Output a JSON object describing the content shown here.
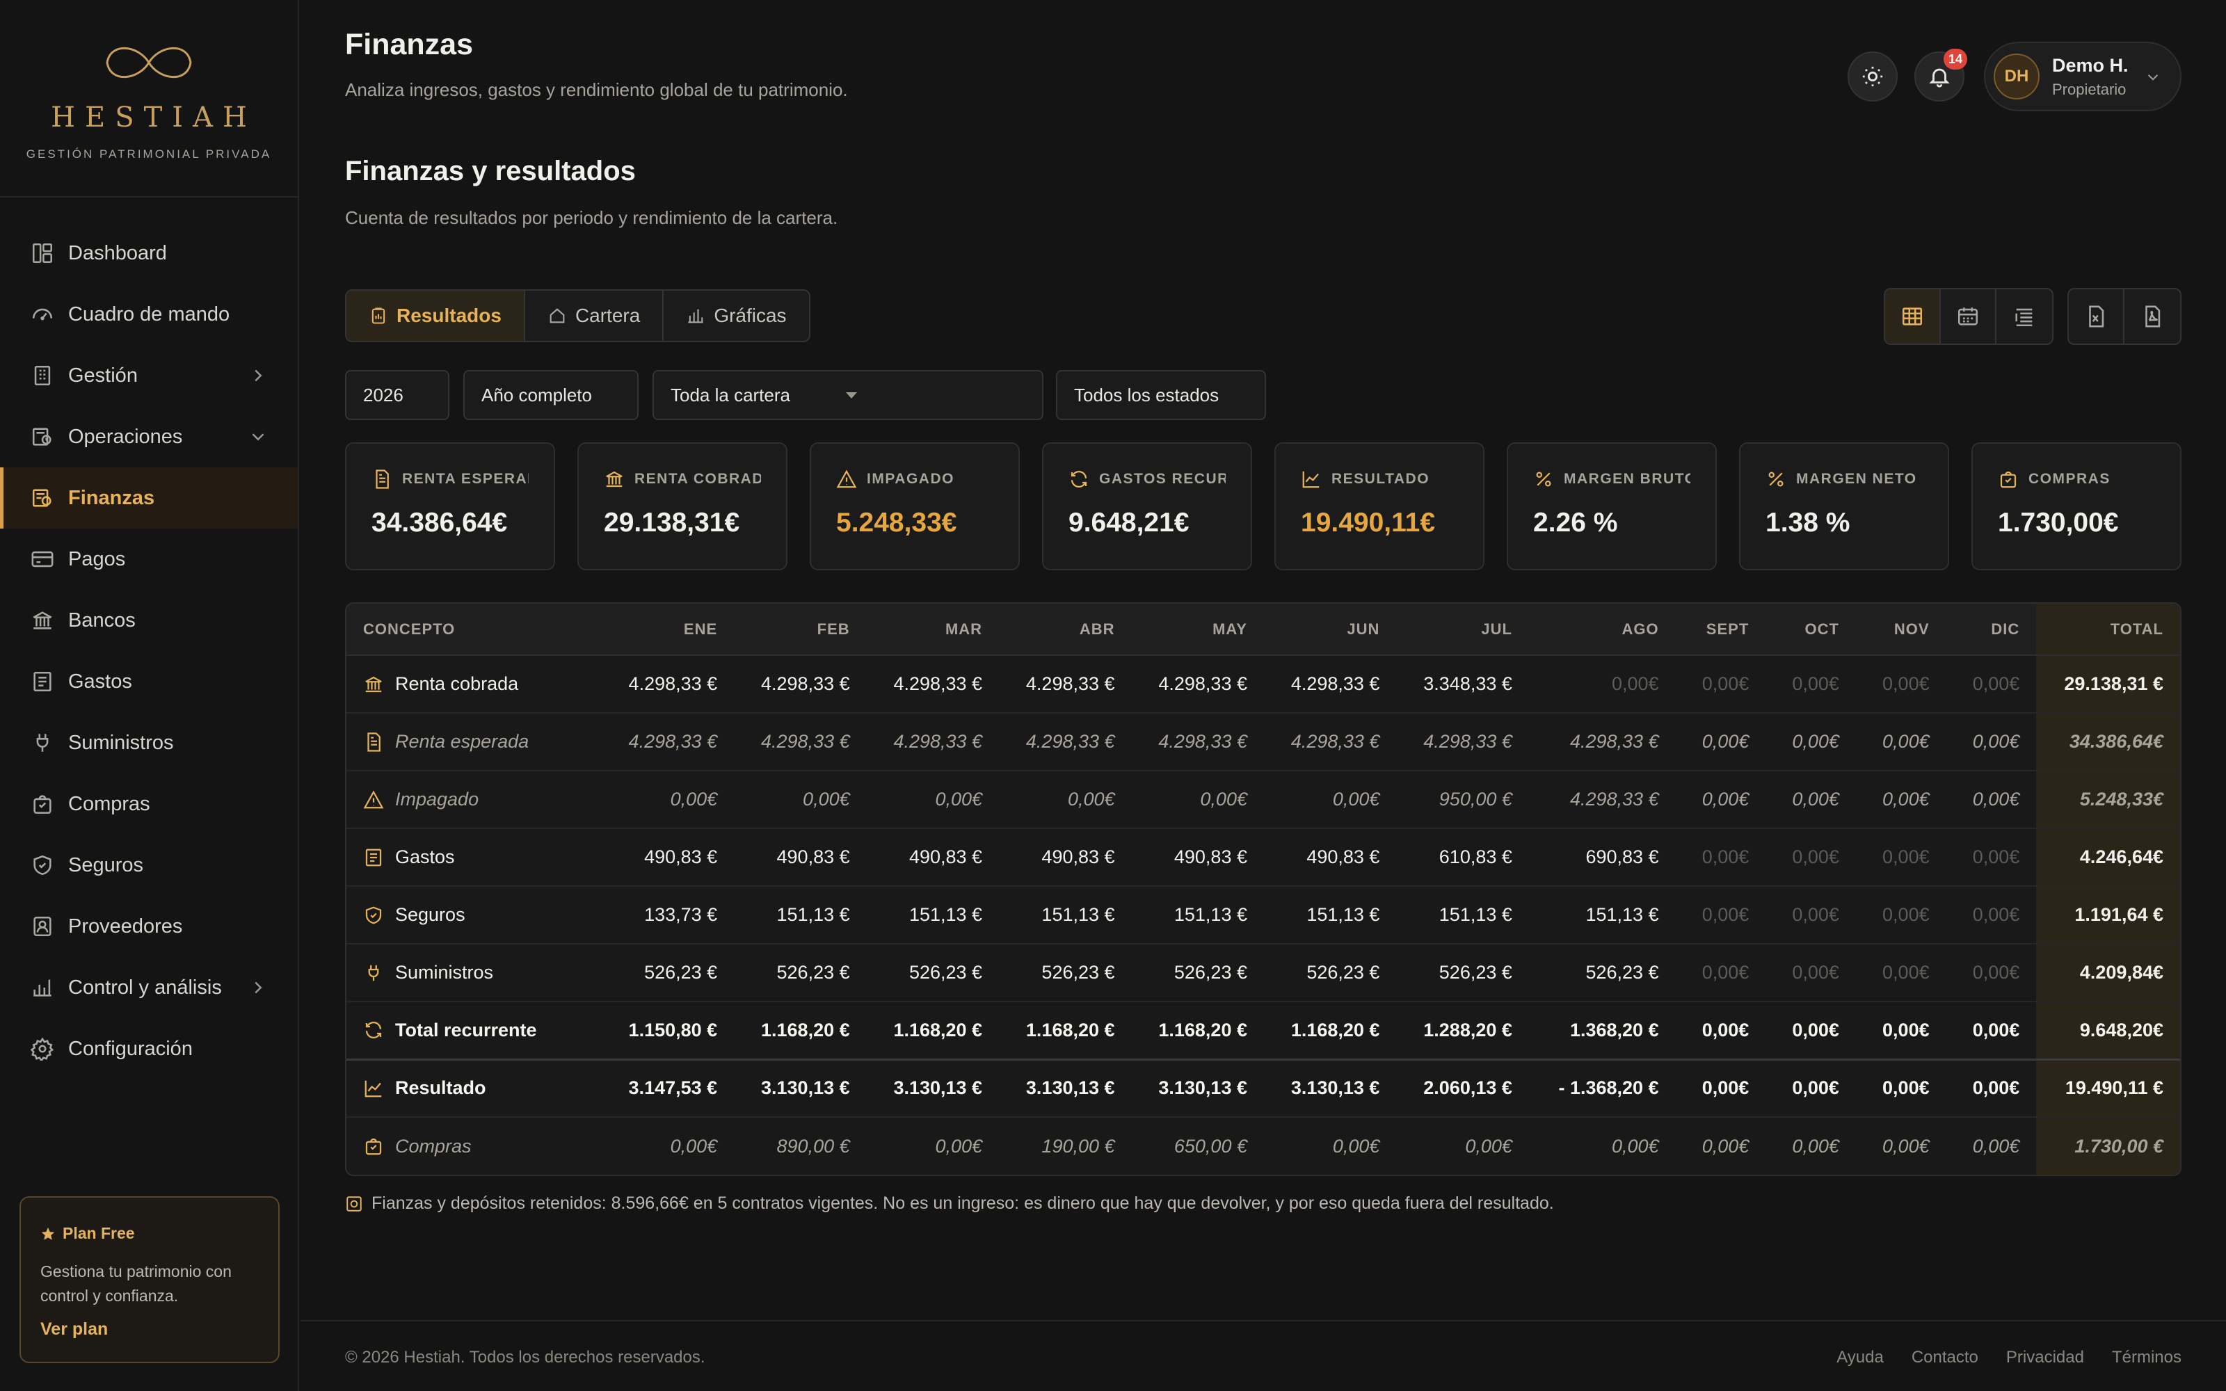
{
  "brand": {
    "name": "HESTIAH",
    "tagline": "GESTIÓN PATRIMONIAL PRIVADA"
  },
  "nav": [
    {
      "label": "Dashboard",
      "icon": "dashboard-icon"
    },
    {
      "label": "Cuadro de mando",
      "icon": "gauge-icon"
    },
    {
      "label": "Gestión",
      "icon": "building-icon",
      "chevron": "right"
    },
    {
      "label": "Operaciones",
      "icon": "operations-icon",
      "chevron": "down"
    },
    {
      "label": "Finanzas",
      "icon": "finance-icon",
      "active": true
    },
    {
      "label": "Pagos",
      "icon": "card-icon"
    },
    {
      "label": "Bancos",
      "icon": "bank-icon"
    },
    {
      "label": "Gastos",
      "icon": "receipt-icon"
    },
    {
      "label": "Suministros",
      "icon": "plug-icon"
    },
    {
      "label": "Compras",
      "icon": "bag-icon"
    },
    {
      "label": "Seguros",
      "icon": "shield-icon"
    },
    {
      "label": "Proveedores",
      "icon": "contact-icon"
    },
    {
      "label": "Control y análisis",
      "icon": "chart-icon",
      "chevron": "right"
    },
    {
      "label": "Configuración",
      "icon": "gear-icon"
    }
  ],
  "plan": {
    "title": "Plan Free",
    "description": "Gestiona tu patrimonio con control y confianza.",
    "link": "Ver plan"
  },
  "header": {
    "title": "Finanzas",
    "subtitle": "Analiza ingresos, gastos y rendimiento global de tu patrimonio.",
    "notifications": "14",
    "user": {
      "initials": "DH",
      "name": "Demo H.",
      "role": "Propietario"
    }
  },
  "section": {
    "title": "Finanzas y resultados",
    "subtitle": "Cuenta de resultados por periodo y rendimiento de la cartera."
  },
  "tabs": [
    {
      "label": "Resultados",
      "active": true
    },
    {
      "label": "Cartera"
    },
    {
      "label": "Gráficas"
    }
  ],
  "filters": {
    "year": "2026",
    "period": "Año completo",
    "portfolio": "Toda la cartera",
    "status": "Todos los estados"
  },
  "kpis": [
    {
      "label": "RENTA ESPERADA",
      "value": "34.386,64€",
      "icon": "document-icon"
    },
    {
      "label": "RENTA COBRADA",
      "value": "29.138,31€",
      "icon": "bank-icon"
    },
    {
      "label": "IMPAGADO",
      "value": "5.248,33€",
      "icon": "warning-icon",
      "highlight": true
    },
    {
      "label": "GASTOS RECURRENTES",
      "value": "9.648,21€",
      "icon": "refresh-icon"
    },
    {
      "label": "RESULTADO",
      "value": "19.490,11€",
      "icon": "trend-icon",
      "highlight": true
    },
    {
      "label": "MARGEN BRUTO",
      "value": "2.26 %",
      "icon": "percent-icon"
    },
    {
      "label": "MARGEN NETO",
      "value": "1.38 %",
      "icon": "percent-icon"
    },
    {
      "label": "COMPRAS",
      "value": "1.730,00€",
      "icon": "bag-icon"
    }
  ],
  "table": {
    "headers": [
      "CONCEPTO",
      "ENE",
      "FEB",
      "MAR",
      "ABR",
      "MAY",
      "JUN",
      "JUL",
      "AGO",
      "SEPT",
      "OCT",
      "NOV",
      "DIC",
      "TOTAL"
    ],
    "rows": [
      {
        "name": "Renta cobrada",
        "icon": "bank-icon",
        "style": "normal",
        "values": [
          "4.298,33 €",
          "4.298,33 €",
          "4.298,33 €",
          "4.298,33 €",
          "4.298,33 €",
          "4.298,33 €",
          "3.348,33 €",
          "0,00€",
          "0,00€",
          "0,00€",
          "0,00€",
          "0,00€"
        ],
        "dim_from": 7,
        "total": "29.138,31  €"
      },
      {
        "name": "Renta esperada",
        "icon": "document-icon",
        "style": "italic",
        "values": [
          "4.298,33 €",
          "4.298,33 €",
          "4.298,33 €",
          "4.298,33 €",
          "4.298,33 €",
          "4.298,33 €",
          "4.298,33 €",
          "4.298,33 €",
          "0,00€",
          "0,00€",
          "0,00€",
          "0,00€"
        ],
        "total": "34.386,64€"
      },
      {
        "name": "Impagado",
        "icon": "warning-icon",
        "style": "italic",
        "values": [
          "0,00€",
          "0,00€",
          "0,00€",
          "0,00€",
          "0,00€",
          "0,00€",
          "950,00 €",
          "4.298,33 €",
          "0,00€",
          "0,00€",
          "0,00€",
          "0,00€"
        ],
        "total": "5.248,33€"
      },
      {
        "name": "Gastos",
        "icon": "receipt-icon",
        "style": "normal",
        "values": [
          "490,83 €",
          "490,83 €",
          "490,83 €",
          "490,83 €",
          "490,83 €",
          "490,83 €",
          "610,83  €",
          "690,83 €",
          "0,00€",
          "0,00€",
          "0,00€",
          "0,00€"
        ],
        "dim_from": 8,
        "total": "4.246,64€"
      },
      {
        "name": "Seguros",
        "icon": "shield-icon",
        "style": "normal",
        "values": [
          "133,73  €",
          "151,13   €",
          "151,13   €",
          "151,13   €",
          "151,13   €",
          "151,13   €",
          "151,13   €",
          "151,13   €",
          "0,00€",
          "0,00€",
          "0,00€",
          "0,00€"
        ],
        "dim_from": 8,
        "total": "1.191,64  €"
      },
      {
        "name": "Suministros",
        "icon": "plug-icon",
        "style": "normal",
        "values": [
          "526,23 €",
          "526,23 €",
          "526,23 €",
          "526,23 €",
          "526,23 €",
          "526,23 €",
          "526,23 €",
          "526,23 €",
          "0,00€",
          "0,00€",
          "0,00€",
          "0,00€"
        ],
        "dim_from": 8,
        "total": "4.209,84€"
      },
      {
        "name": "Total recurrente",
        "icon": "refresh-icon",
        "style": "bold",
        "values": [
          "1.150,80  €",
          "1.168,20  €",
          "1.168,20  €",
          "1.168,20  €",
          "1.168,20  €",
          "1.168,20  €",
          "1.288,20 €",
          "1.368,20 €",
          "0,00€",
          "0,00€",
          "0,00€",
          "0,00€"
        ],
        "total": "9.648,20€"
      },
      {
        "name": "Resultado",
        "icon": "trend-icon",
        "style": "bold",
        "separator": true,
        "values": [
          "3.147,53  €",
          "3.130,13  €",
          "3.130,13  €",
          "3.130,13  €",
          "3.130,13  €",
          "3.130,13  €",
          "2.060,13 €",
          "- 1.368,20 €",
          "0,00€",
          "0,00€",
          "0,00€",
          "0,00€"
        ],
        "total": "19.490,11  €"
      },
      {
        "name": "Compras",
        "icon": "bag-icon",
        "style": "italic",
        "values": [
          "0,00€",
          "890,00 €",
          "0,00€",
          "190,00  €",
          "650,00 €",
          "0,00€",
          "0,00€",
          "0,00€",
          "0,00€",
          "0,00€",
          "0,00€",
          "0,00€"
        ],
        "total": "1.730,00  €"
      }
    ]
  },
  "note": "Fianzas y depósitos retenidos: 8.596,66€ en 5 contratos vigentes. No es un ingreso: es dinero que hay que devolver, y por eso queda fuera del resultado.",
  "footer": {
    "copyright": "© 2026 Hestiah. Todos los derechos reservados.",
    "links": [
      "Ayuda",
      "Contacto",
      "Privacidad",
      "Términos"
    ]
  },
  "colors": {
    "accent": "#e6b35b",
    "background": "#141414",
    "card": "#1b1b1b",
    "negative_badge": "#e0453b"
  }
}
